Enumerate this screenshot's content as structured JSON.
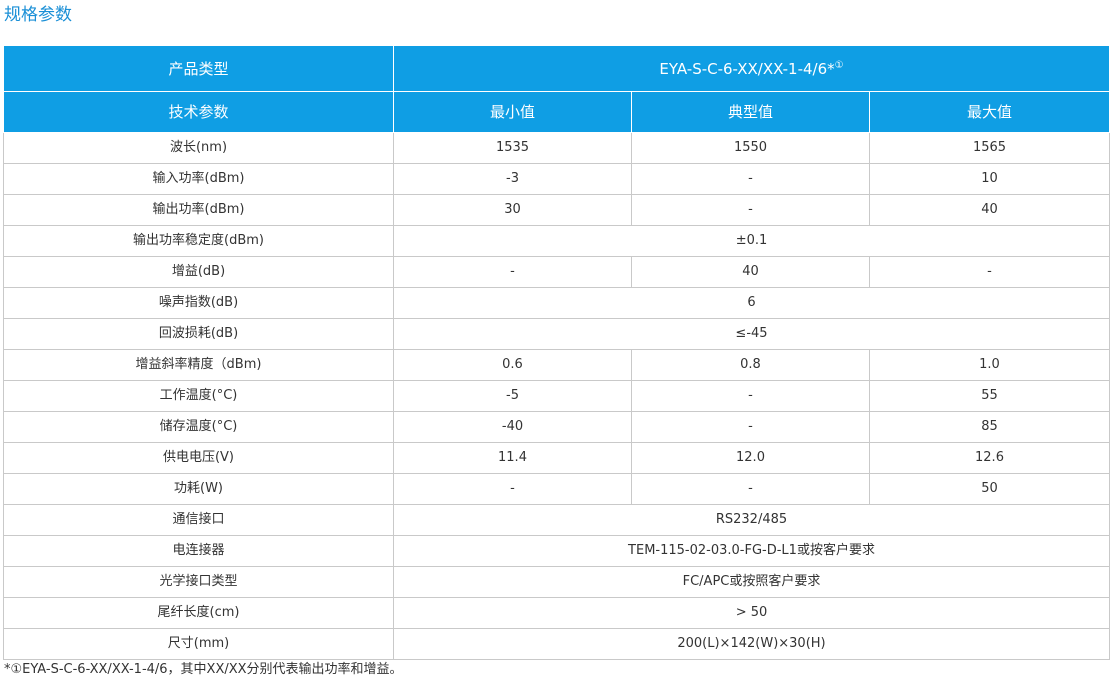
{
  "title": "规格参数",
  "header": {
    "product_type_label": "产品类型",
    "model": "EYA-S-C-6-XX/XX-1-4/6*",
    "model_note": "①",
    "param_label": "技术参数",
    "min_label": "最小值",
    "typ_label": "典型值",
    "max_label": "最大值"
  },
  "rows": [
    {
      "name": "波长(nm)",
      "min": "1535",
      "typ": "1550",
      "max": "1565"
    },
    {
      "name": "输入功率(dBm)",
      "min": "-3",
      "typ": "-",
      "max": "10"
    },
    {
      "name": "输出功率(dBm)",
      "min": "30",
      "typ": "-",
      "max": "40"
    },
    {
      "name": "输出功率稳定度(dBm)",
      "span": "±0.1"
    },
    {
      "name": "增益(dB)",
      "min": "-",
      "typ": "40",
      "max": "-"
    },
    {
      "name": "噪声指数(dB)",
      "span": "6"
    },
    {
      "name": "回波损耗(dB)",
      "span": "≤-45"
    },
    {
      "name": "增益斜率精度（dBm)",
      "min": "0.6",
      "typ": "0.8",
      "max": "1.0"
    },
    {
      "name": "工作温度(°C)",
      "min": "-5",
      "typ": "-",
      "max": "55"
    },
    {
      "name": "储存温度(°C)",
      "min": "-40",
      "typ": "-",
      "max": "85"
    },
    {
      "name": "供电电压(V)",
      "min": "11.4",
      "typ": "12.0",
      "max": "12.6"
    },
    {
      "name": "功耗(W)",
      "min": "-",
      "typ": "-",
      "max": "50"
    },
    {
      "name": "通信接口",
      "span": "RS232/485"
    },
    {
      "name": "电连接器",
      "span": "TEM-115-02-03.0-FG-D-L1或按客户要求"
    },
    {
      "name": "光学接口类型",
      "span": "FC/APC或按照客户要求"
    },
    {
      "name": "尾纤长度(cm)",
      "span": "> 50"
    },
    {
      "name": "尺寸(mm)",
      "span": "200(L)×142(W)×30(H)"
    }
  ],
  "footnote": "*①EYA-S-C-6-XX/XX-1-4/6，其中XX/XX分别代表输出功率和增益。"
}
